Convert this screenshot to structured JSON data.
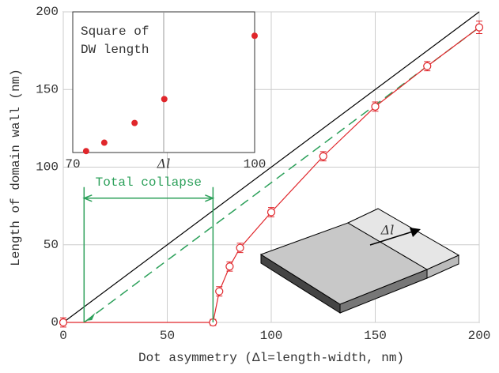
{
  "chart_data": [
    {
      "type": "line",
      "xlabel": "Dot asymmetry (Δl=length-width, nm)",
      "ylabel": "Length of domain wall (nm)",
      "xlim": [
        0,
        200
      ],
      "ylim": [
        0,
        200
      ],
      "xticks": [
        0,
        50,
        100,
        150,
        200
      ],
      "yticks": [
        0,
        50,
        100,
        150,
        200
      ],
      "grid": true,
      "series": [
        {
          "color": "#000000",
          "style": "solid",
          "x": [
            0,
            200
          ],
          "values": [
            0,
            200
          ]
        },
        {
          "color": "#2ca05a",
          "style": "dashed",
          "x": [
            10,
            200
          ],
          "values": [
            0,
            190
          ]
        },
        {
          "color": "#e0262b",
          "style": "solid",
          "markers": true,
          "x": [
            0,
            72,
            75,
            80,
            85,
            100,
            125,
            150,
            175,
            200
          ],
          "values": [
            0,
            0,
            20,
            36,
            48,
            71,
            107,
            139,
            165,
            190
          ],
          "errors": [
            3,
            2,
            3,
            3,
            3,
            3,
            3,
            3,
            3,
            4
          ]
        }
      ],
      "annotation": {
        "text": "Total collapse",
        "color": "#2ca05a",
        "x_range": [
          10,
          72
        ],
        "y": 80
      },
      "illustration_label": "Δl"
    },
    {
      "type": "scatter",
      "title": [
        "Square of",
        "DW length"
      ],
      "xlabel": "Δl",
      "xlim": [
        70,
        100
      ],
      "ylim": [
        0,
        100
      ],
      "xticks": [
        70,
        100
      ],
      "grid_x": [
        85
      ],
      "color": "#e0262b",
      "x": [
        72.2,
        75.2,
        80.2,
        85.1,
        100
      ],
      "values": [
        1,
        7,
        21,
        38,
        83
      ]
    }
  ]
}
